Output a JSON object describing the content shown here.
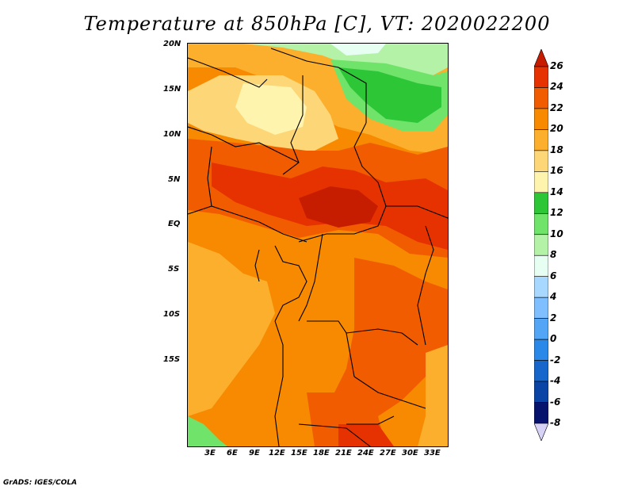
{
  "title": "Temperature at 850hPa [C], VT: 2020022200",
  "lat_labels": [
    "20N",
    "15N",
    "10N",
    "5N",
    "EQ",
    "5S",
    "10S",
    "15S"
  ],
  "lon_labels": [
    "3E",
    "6E",
    "9E",
    "12E",
    "15E",
    "18E",
    "21E",
    "24E",
    "27E",
    "30E",
    "33E"
  ],
  "colorbar": {
    "labels": [
      "26",
      "24",
      "22",
      "20",
      "18",
      "16",
      "14",
      "12",
      "10",
      "8",
      "6",
      "4",
      "2",
      "0",
      "-2",
      "-4",
      "-6",
      "-8"
    ],
    "colors": [
      "#c61c00",
      "#e63200",
      "#f25c00",
      "#f78a00",
      "#fbaf2c",
      "#fdd677",
      "#fef4ad",
      "#2dc637",
      "#6fe36a",
      "#b3f2a7",
      "#e7fff2",
      "#a8d8ff",
      "#7fbeff",
      "#53a5f5",
      "#2a88e8",
      "#1666cc",
      "#0a45a5",
      "#07146e",
      "#d7d3f7"
    ]
  },
  "credit": "GrADS: IGES/COLA"
}
